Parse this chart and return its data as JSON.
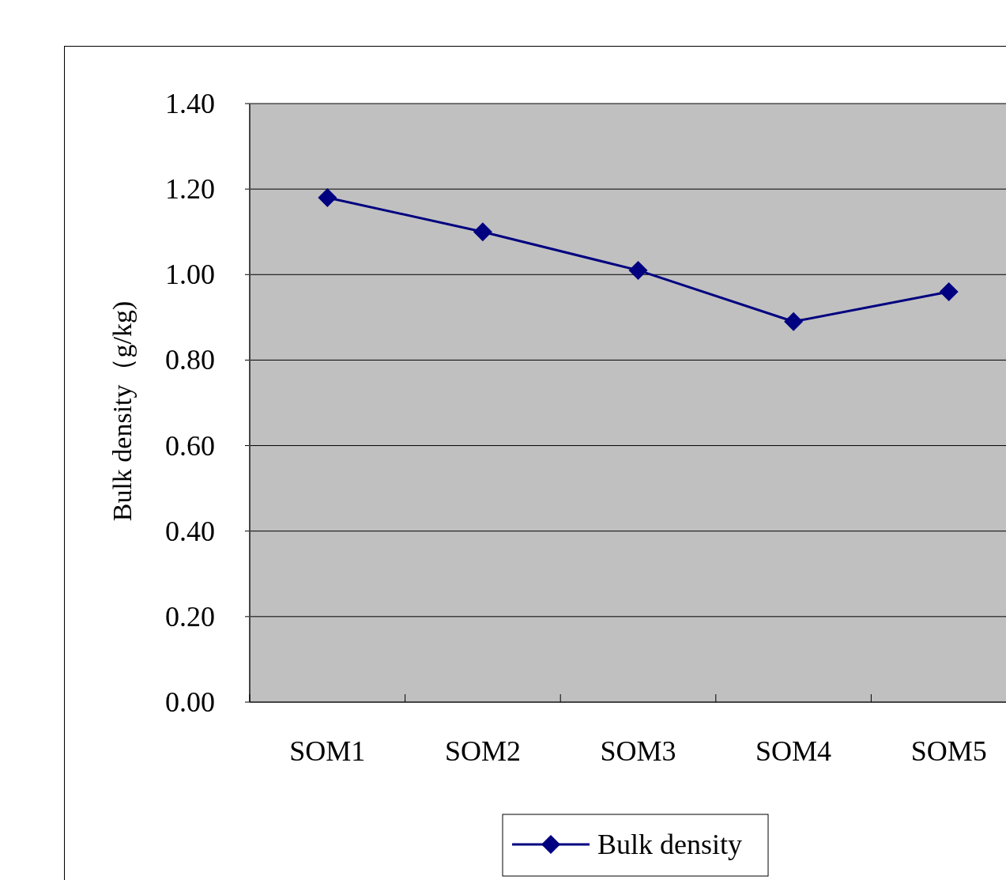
{
  "chart_data": {
    "type": "line",
    "ylabel": "Bulk density（g/kg)",
    "categories": [
      "SOM1",
      "SOM2",
      "SOM3",
      "SOM4",
      "SOM5"
    ],
    "series": [
      {
        "name": "Bulk density",
        "color": "#000080",
        "values": [
          1.18,
          1.1,
          1.01,
          0.89,
          0.96
        ]
      }
    ],
    "ylim": [
      0,
      1.4
    ],
    "yticks": [
      {
        "value": 0,
        "label": "0.00"
      },
      {
        "value": 0.2,
        "label": "0.20"
      },
      {
        "value": 0.4,
        "label": "0.40"
      },
      {
        "value": 0.6,
        "label": "0.60"
      },
      {
        "value": 0.8,
        "label": "0.80"
      },
      {
        "value": 1.0,
        "label": "1.00"
      },
      {
        "value": 1.2,
        "label": "1.20"
      },
      {
        "value": 1.4,
        "label": "1.40"
      }
    ],
    "grid": "y",
    "legend": "bottom",
    "marker": "diamond",
    "line_style": "solid"
  }
}
